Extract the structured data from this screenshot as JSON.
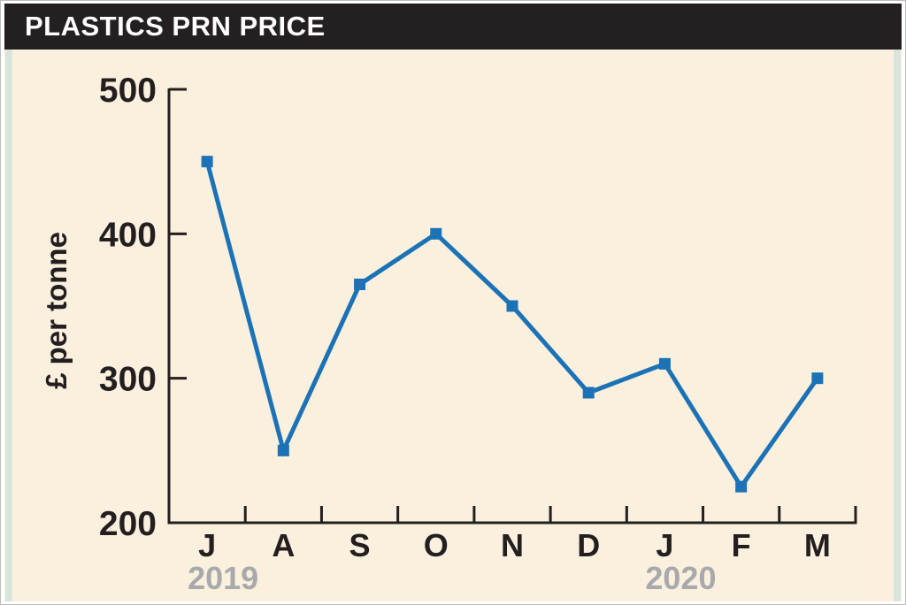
{
  "header": {
    "title": "PLASTICS PRN PRICE"
  },
  "colors": {
    "header_bg": "#242021",
    "header_text": "#ffffff",
    "panel_bg": "#faf0dd",
    "edge_strip": "#d9e4db",
    "line": "#1b72b6",
    "axis": "#231f20",
    "tick_label": "#231f20",
    "year_label": "#a7a9ac"
  },
  "chart_data": {
    "type": "line",
    "title": "PLASTICS PRN PRICE",
    "ylabel": "£ per tonne",
    "xlabel": "",
    "categories": [
      "J",
      "A",
      "S",
      "O",
      "N",
      "D",
      "J",
      "F",
      "M"
    ],
    "values": [
      450,
      250,
      365,
      400,
      350,
      290,
      310,
      225,
      300
    ],
    "ylim": [
      200,
      500
    ],
    "yticks": [
      200,
      300,
      400,
      500
    ],
    "year_labels": [
      {
        "text": "2019",
        "month_index": 0
      },
      {
        "text": "2020",
        "month_index": 6
      }
    ],
    "marker": "square",
    "grid": false,
    "legend": "none"
  }
}
